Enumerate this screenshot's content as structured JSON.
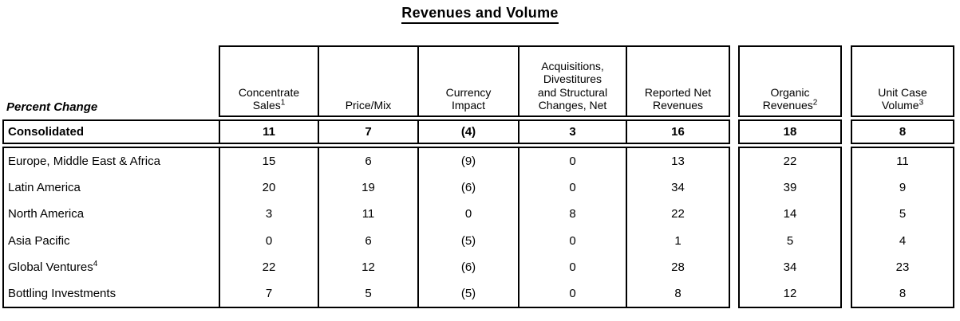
{
  "title": "Revenues and Volume",
  "table": {
    "row_header_label": "Percent Change",
    "columns": [
      {
        "label": "Concentrate\nSales",
        "sup": "1"
      },
      {
        "label": "Price/Mix",
        "sup": ""
      },
      {
        "label": "Currency\nImpact",
        "sup": ""
      },
      {
        "label": "Acquisitions,\nDivestitures\nand Structural\nChanges, Net",
        "sup": ""
      },
      {
        "label": "Reported Net\nRevenues",
        "sup": ""
      },
      {
        "label": "Organic\nRevenues",
        "sup": "2"
      },
      {
        "label": "Unit Case\nVolume",
        "sup": "3"
      }
    ],
    "rows": [
      {
        "label": "Consolidated",
        "sup": "",
        "values": [
          "11",
          "7",
          "(4)",
          "3",
          "16",
          "18",
          "8"
        ]
      },
      {
        "label": "Europe, Middle East & Africa",
        "sup": "",
        "values": [
          "15",
          "6",
          "(9)",
          "0",
          "13",
          "22",
          "11"
        ]
      },
      {
        "label": "Latin America",
        "sup": "",
        "values": [
          "20",
          "19",
          "(6)",
          "0",
          "34",
          "39",
          "9"
        ]
      },
      {
        "label": "North America",
        "sup": "",
        "values": [
          "3",
          "11",
          "0",
          "8",
          "22",
          "14",
          "5"
        ]
      },
      {
        "label": "Asia Pacific",
        "sup": "",
        "values": [
          "0",
          "6",
          "(5)",
          "0",
          "1",
          "5",
          "4"
        ]
      },
      {
        "label": "Global Ventures",
        "sup": "4",
        "values": [
          "22",
          "12",
          "(6)",
          "0",
          "28",
          "34",
          "23"
        ]
      },
      {
        "label": "Bottling Investments",
        "sup": "",
        "values": [
          "7",
          "5",
          "(5)",
          "0",
          "8",
          "12",
          "8"
        ]
      }
    ]
  }
}
